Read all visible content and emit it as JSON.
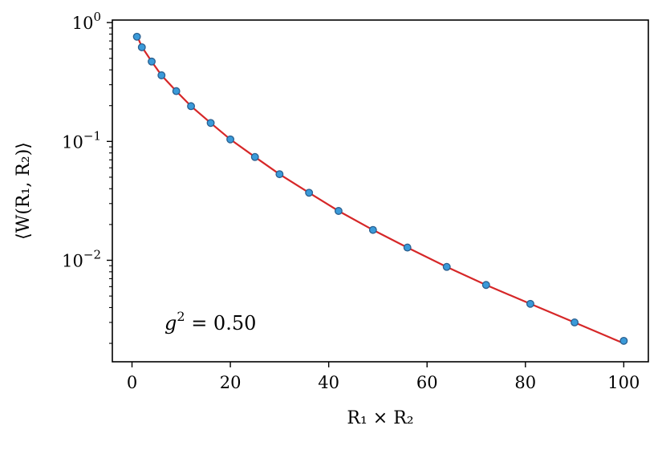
{
  "chart_data": {
    "type": "scatter",
    "xlabel": "R₁ × R₂",
    "ylabel": "⟨W(R₁, R₂)⟩",
    "yscale": "log",
    "xlim": [
      -4,
      105
    ],
    "ylim": [
      0.0014,
      1.05
    ],
    "x_ticks": [
      {
        "value": 0,
        "label": "0"
      },
      {
        "value": 20,
        "label": "20"
      },
      {
        "value": 40,
        "label": "40"
      },
      {
        "value": 60,
        "label": "60"
      },
      {
        "value": 80,
        "label": "80"
      },
      {
        "value": 100,
        "label": "100"
      }
    ],
    "y_ticks": [
      {
        "value": 1,
        "base": "10",
        "exp": "0"
      },
      {
        "value": 0.1,
        "base": "10",
        "exp": "−1"
      },
      {
        "value": 0.01,
        "base": "10",
        "exp": "−2"
      }
    ],
    "annotation": {
      "text_main": "g",
      "sup": "2",
      "text_rest": " = 0.50"
    },
    "grid": false,
    "series": [
      {
        "kind": "points",
        "color": "#3a9ad9",
        "edge_color": "#2a5f8f",
        "x": [
          1,
          2,
          4,
          6,
          9,
          12,
          16,
          20,
          25,
          30,
          36,
          42,
          49,
          56,
          64,
          72,
          81,
          90,
          100
        ],
        "y": [
          0.76,
          0.62,
          0.47,
          0.36,
          0.265,
          0.198,
          0.143,
          0.104,
          0.074,
          0.053,
          0.037,
          0.026,
          0.018,
          0.0128,
          0.0088,
          0.0062,
          0.0043,
          0.003,
          0.0021
        ]
      },
      {
        "kind": "fit-curve",
        "color": "#d62728",
        "x": [
          1,
          2,
          4,
          6,
          9,
          12,
          16,
          20,
          25,
          30,
          36,
          42,
          49,
          56,
          64,
          72,
          81,
          90,
          100
        ],
        "y": [
          0.78,
          0.625,
          0.47,
          0.36,
          0.265,
          0.198,
          0.143,
          0.104,
          0.074,
          0.053,
          0.037,
          0.026,
          0.018,
          0.0128,
          0.0088,
          0.0062,
          0.0043,
          0.003,
          0.002
        ]
      }
    ]
  }
}
